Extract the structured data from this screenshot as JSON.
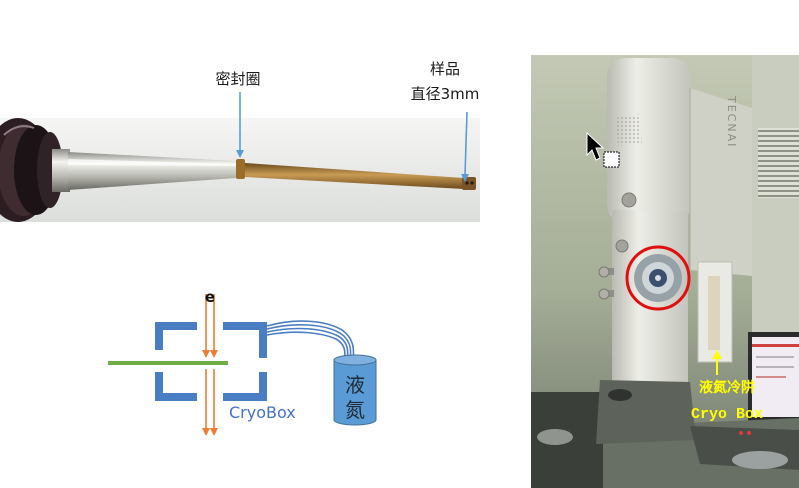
{
  "holder_photo": {
    "seal_label": "密封圈",
    "sample_label": [
      "样品",
      "直径3mm"
    ]
  },
  "diagram": {
    "electron_label": "e",
    "cryobox_label": "CryoBox",
    "ln2_label": [
      "液",
      "氮"
    ]
  },
  "microscope_photo": {
    "brand_text": "TECNAI",
    "cold_trap_label": "液氮冷阱",
    "cryo_box_label": "Cryo Box"
  },
  "icons": {
    "cursor": "mouse-pointer-copy-icon",
    "arrow": "arrow-up-icon"
  },
  "colors": {
    "pointer_blue": "#5b9bd5",
    "bracket_blue": "#4a7ec2",
    "beam_orange": "#ed7d31",
    "sample_green": "#70ad47",
    "ln2_blue": "#5b9bd5",
    "cryobox_text": "#4472c4",
    "label_yellow": "#ffff00",
    "highlight_red": "#e01010"
  }
}
